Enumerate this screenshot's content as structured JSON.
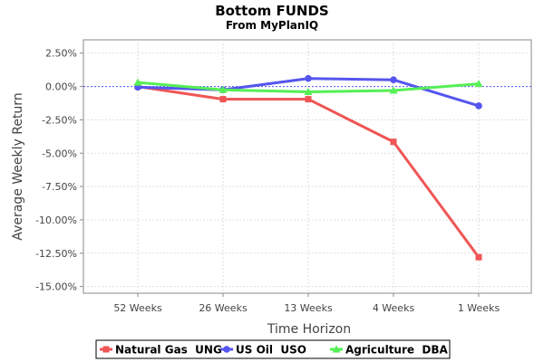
{
  "chart_data": {
    "type": "line",
    "title": "Bottom FUNDS",
    "subtitle": "From MyPlanIQ",
    "xlabel": "Time Horizon",
    "ylabel": "Average Weekly Return",
    "categories": [
      "52 Weeks",
      "26 Weeks",
      "13 Weeks",
      "4 Weeks",
      "1 Weeks"
    ],
    "ylim": [
      -15.5,
      3.5
    ],
    "yticks": [
      2.5,
      0,
      -2.5,
      -5,
      -7.5,
      -10,
      -12.5,
      -15
    ],
    "ytick_labels": [
      "2.50%",
      "0.00%",
      "-2.50%",
      "-5.00%",
      "-7.50%",
      "-10.00%",
      "-12.50%",
      "-15.00%"
    ],
    "grid": true,
    "zero_line": true,
    "legend_position": "bottom",
    "series": [
      {
        "name": "Natural Gas  UNG",
        "color": "#ef5555",
        "marker": "square",
        "values": [
          0.0,
          -0.95,
          -0.95,
          -4.15,
          -12.8
        ]
      },
      {
        "name": "US Oil  USO",
        "color": "#5555ef",
        "marker": "circle",
        "values": [
          -0.05,
          -0.25,
          0.6,
          0.5,
          -1.45
        ]
      },
      {
        "name": "Agriculture  DBA",
        "color": "#55ef55",
        "marker": "triangle",
        "values": [
          0.3,
          -0.25,
          -0.4,
          -0.3,
          0.2
        ]
      }
    ]
  }
}
